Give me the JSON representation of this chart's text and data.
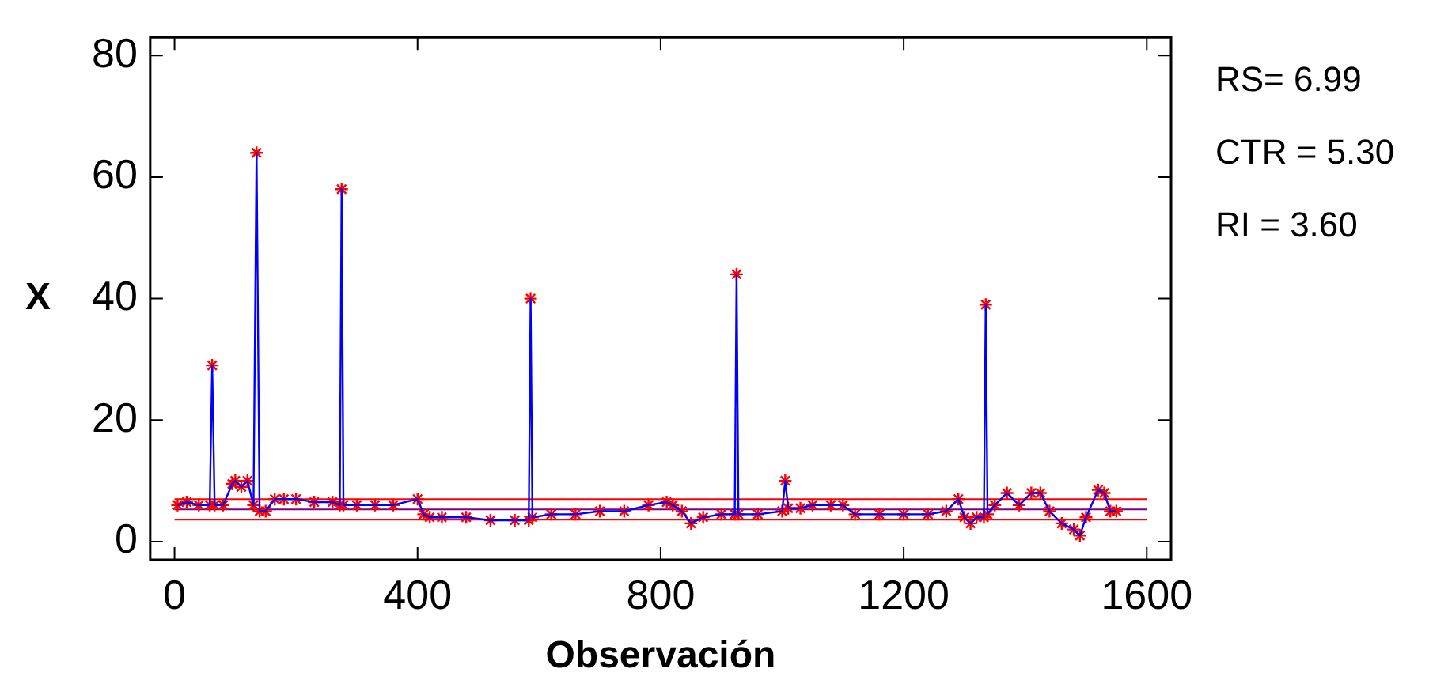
{
  "chart_data": {
    "type": "line",
    "xlabel": "Observación",
    "ylabel": "X",
    "xlim": [
      -40,
      1640
    ],
    "ylim": [
      -3,
      83
    ],
    "xticks": [
      0,
      400,
      800,
      1200,
      1600
    ],
    "yticks": [
      0,
      20,
      40,
      60,
      80
    ],
    "grid": false,
    "legend": false,
    "x": [
      5,
      20,
      40,
      58,
      62,
      66,
      80,
      95,
      100,
      110,
      120,
      130,
      135,
      140,
      150,
      165,
      180,
      200,
      230,
      260,
      272,
      275,
      278,
      300,
      330,
      360,
      400,
      410,
      420,
      440,
      480,
      520,
      560,
      583,
      586,
      589,
      620,
      660,
      700,
      740,
      780,
      810,
      820,
      835,
      850,
      870,
      900,
      922,
      925,
      928,
      960,
      1000,
      1005,
      1010,
      1030,
      1050,
      1080,
      1100,
      1120,
      1160,
      1200,
      1240,
      1270,
      1290,
      1300,
      1310,
      1320,
      1332,
      1335,
      1338,
      1350,
      1370,
      1390,
      1410,
      1425,
      1440,
      1460,
      1480,
      1490,
      1500,
      1520,
      1530,
      1540,
      1550
    ],
    "series": [
      {
        "color": "#0000ff",
        "marker": "none",
        "values": [
          6,
          6.5,
          6,
          6,
          29,
          6,
          6,
          9.5,
          10,
          9,
          10,
          6,
          64,
          5,
          5,
          7,
          7,
          7,
          6.5,
          6.5,
          6,
          58,
          6,
          6,
          6,
          6,
          7,
          4.5,
          4,
          4,
          4,
          3.5,
          3.5,
          3.5,
          40,
          4,
          4.5,
          4.5,
          5,
          5,
          6,
          6.5,
          6,
          5,
          3,
          4,
          4.5,
          4.5,
          44,
          4.5,
          4.5,
          5,
          10,
          5.5,
          5.5,
          6,
          6,
          6,
          4.5,
          4.5,
          4.5,
          4.5,
          5,
          7,
          4,
          3,
          4,
          4,
          39,
          4.5,
          6,
          8,
          6,
          8,
          8,
          5,
          3,
          2,
          1,
          4,
          8.5,
          8,
          5,
          5
        ]
      },
      {
        "type": "scatter",
        "color": "#ff0000",
        "marker": "cross",
        "values": [
          6,
          6.5,
          6,
          6,
          29,
          6,
          6,
          9.5,
          10,
          9,
          10,
          6,
          64,
          5,
          5,
          7,
          7,
          7,
          6.5,
          6.5,
          6,
          58,
          6,
          6,
          6,
          6,
          7,
          4.5,
          4,
          4,
          4,
          3.5,
          3.5,
          3.5,
          40,
          4,
          4.5,
          4.5,
          5,
          5,
          6,
          6.5,
          6,
          5,
          3,
          4,
          4.5,
          4.5,
          44,
          4.5,
          4.5,
          5,
          10,
          5.5,
          5.5,
          6,
          6,
          6,
          4.5,
          4.5,
          4.5,
          4.5,
          5,
          7,
          4,
          3,
          4,
          4,
          39,
          4.5,
          6,
          8,
          6,
          8,
          8,
          5,
          3,
          2,
          1,
          4,
          8.5,
          8,
          5,
          5
        ]
      }
    ],
    "annotations": [
      "RS= 6.99",
      "CTR = 5.30",
      "RI = 3.60"
    ],
    "ref_lines": [
      {
        "axis": "y",
        "value": 6.99,
        "color": "#ff0000"
      },
      {
        "axis": "y",
        "value": 5.3,
        "color": "#800080"
      },
      {
        "axis": "y",
        "value": 3.6,
        "color": "#ff0000"
      }
    ]
  }
}
